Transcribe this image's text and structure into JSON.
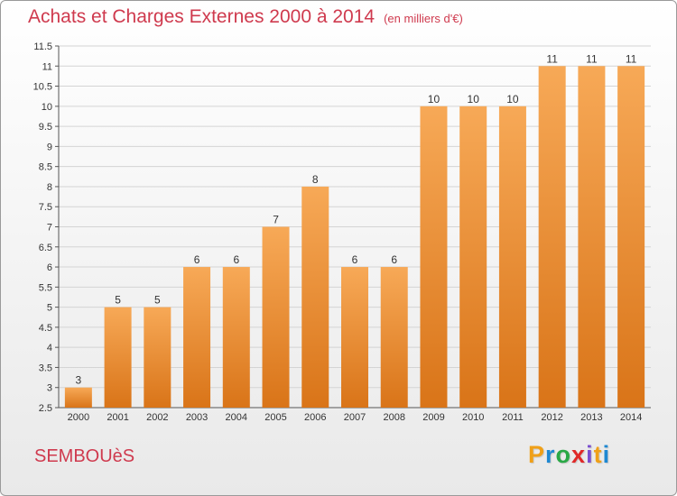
{
  "header": {
    "title": "Achats et Charges Externes 2000 à 2014",
    "unit": "(en milliers d'€)"
  },
  "footer": {
    "place": "SEMBOUèS",
    "logo_letters": [
      "P",
      "r",
      "o",
      "x",
      "i",
      "t",
      "i"
    ],
    "logo_colors": [
      "#f0a018",
      "#1e88d2",
      "#2aa846",
      "#e02828",
      "#7a4fd0",
      "#f0a018",
      "#1e88d2"
    ]
  },
  "colors": {
    "bar_light": "#f7a957",
    "bar_dark": "#d97418",
    "title": "#cf3a4e"
  },
  "chart_data": {
    "type": "bar",
    "title": "Achats et Charges Externes 2000 à 2014",
    "categories": [
      "2000",
      "2001",
      "2002",
      "2003",
      "2004",
      "2005",
      "2006",
      "2007",
      "2008",
      "2009",
      "2010",
      "2011",
      "2012",
      "2013",
      "2014"
    ],
    "values": [
      3,
      5,
      5,
      6,
      6,
      7,
      8,
      6,
      6,
      10,
      10,
      10,
      11,
      11,
      11
    ],
    "ylim": [
      2.5,
      11.5
    ],
    "yticks": [
      "2.5",
      "3",
      "3.5",
      "4",
      "4.5",
      "5",
      "5.5",
      "6",
      "6.5",
      "7",
      "7.5",
      "8",
      "8.5",
      "9",
      "9.5",
      "10",
      "10.5",
      "11",
      "11.5"
    ],
    "grid": true
  }
}
